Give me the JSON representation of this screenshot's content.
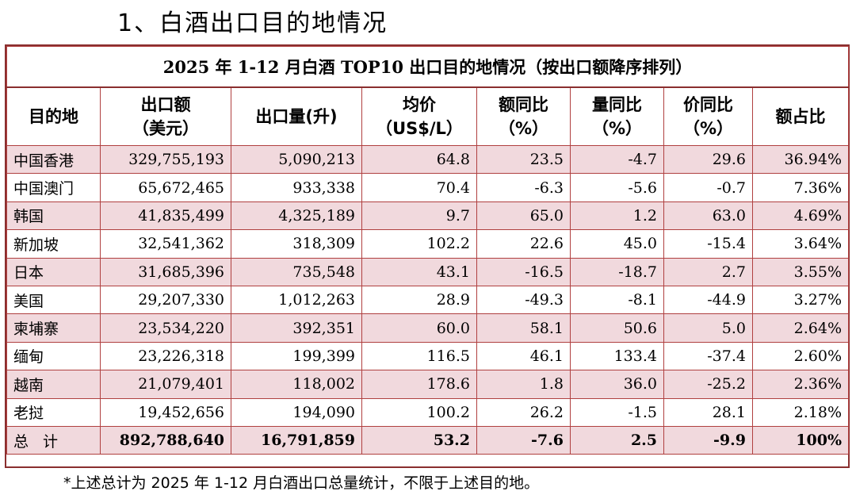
{
  "heading": "1、白酒出口目的地情况",
  "table_title": "2025 年 1-12 月白酒 TOP10 出口目的地情况（按出口额降序排列）",
  "headers": {
    "destination": "目的地",
    "export_value_l1": "出口额",
    "export_value_l2": "（美元）",
    "export_volume": "出口量(升)",
    "avg_price_l1": "均价",
    "avg_price_l2": "（US$/L）",
    "value_yoy_l1": "额同比",
    "value_yoy_l2": "（%）",
    "volume_yoy_l1": "量同比",
    "volume_yoy_l2": "（%）",
    "price_yoy_l1": "价同比",
    "price_yoy_l2": "（%）",
    "share": "额占比"
  },
  "rows": [
    {
      "dest": "中国香港",
      "value": "329,755,193",
      "volume": "5,090,213",
      "price": "64.8",
      "value_yoy": "23.5",
      "volume_yoy": "-4.7",
      "price_yoy": "29.6",
      "share": "36.94%"
    },
    {
      "dest": "中国澳门",
      "value": "65,672,465",
      "volume": "933,338",
      "price": "70.4",
      "value_yoy": "-6.3",
      "volume_yoy": "-5.6",
      "price_yoy": "-0.7",
      "share": "7.36%"
    },
    {
      "dest": "韩国",
      "value": "41,835,499",
      "volume": "4,325,189",
      "price": "9.7",
      "value_yoy": "65.0",
      "volume_yoy": "1.2",
      "price_yoy": "63.0",
      "share": "4.69%"
    },
    {
      "dest": "新加坡",
      "value": "32,541,362",
      "volume": "318,309",
      "price": "102.2",
      "value_yoy": "22.6",
      "volume_yoy": "45.0",
      "price_yoy": "-15.4",
      "share": "3.64%"
    },
    {
      "dest": "日本",
      "value": "31,685,396",
      "volume": "735,548",
      "price": "43.1",
      "value_yoy": "-16.5",
      "volume_yoy": "-18.7",
      "price_yoy": "2.7",
      "share": "3.55%"
    },
    {
      "dest": "美国",
      "value": "29,207,330",
      "volume": "1,012,263",
      "price": "28.9",
      "value_yoy": "-49.3",
      "volume_yoy": "-8.1",
      "price_yoy": "-44.9",
      "share": "3.27%"
    },
    {
      "dest": "柬埔寨",
      "value": "23,534,220",
      "volume": "392,351",
      "price": "60.0",
      "value_yoy": "58.1",
      "volume_yoy": "50.6",
      "price_yoy": "5.0",
      "share": "2.64%"
    },
    {
      "dest": "缅甸",
      "value": "23,226,318",
      "volume": "199,399",
      "price": "116.5",
      "value_yoy": "46.1",
      "volume_yoy": "133.4",
      "price_yoy": "-37.4",
      "share": "2.60%"
    },
    {
      "dest": "越南",
      "value": "21,079,401",
      "volume": "118,002",
      "price": "178.6",
      "value_yoy": "1.8",
      "volume_yoy": "36.0",
      "price_yoy": "-25.2",
      "share": "2.36%"
    },
    {
      "dest": "老挝",
      "value": "19,452,656",
      "volume": "194,090",
      "price": "100.2",
      "value_yoy": "26.2",
      "volume_yoy": "-1.5",
      "price_yoy": "28.1",
      "share": "2.18%"
    }
  ],
  "total": {
    "dest": "总计",
    "value": "892,788,640",
    "volume": "16,791,859",
    "price": "53.2",
    "value_yoy": "-7.6",
    "volume_yoy": "2.5",
    "price_yoy": "-9.9",
    "share": "100%"
  },
  "footnote": "*上述总计为 2025 年 1-12 月白酒出口总量统计，不限于上述目的地。",
  "colors": {
    "border": "#8a2f2f",
    "row_tint": "#f1d9dd"
  }
}
